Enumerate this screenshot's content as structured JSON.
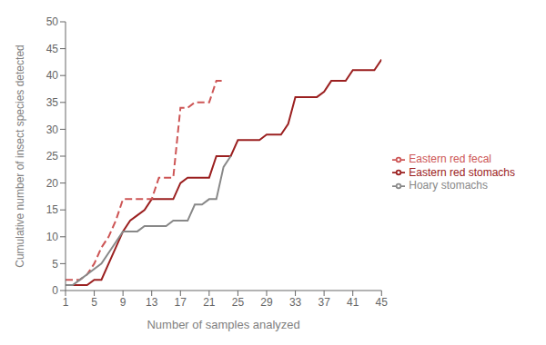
{
  "chart_data": {
    "type": "line",
    "xlabel": "Number of samples analyzed",
    "ylabel": "Cumulative number of insect species detected",
    "xlim": [
      1,
      45
    ],
    "ylim": [
      0,
      50
    ],
    "xticks": [
      1,
      5,
      9,
      13,
      17,
      21,
      25,
      29,
      33,
      37,
      41,
      45
    ],
    "yticks": [
      0,
      5,
      10,
      15,
      20,
      25,
      30,
      35,
      40,
      45,
      50
    ],
    "grid": false,
    "legend": "right",
    "series": [
      {
        "name": "Eastern red stomachs",
        "color": "#9B2020",
        "line_style": "solid",
        "x": [
          1,
          2,
          3,
          4,
          5,
          6,
          7,
          8,
          9,
          10,
          11,
          12,
          13,
          14,
          15,
          16,
          17,
          18,
          19,
          20,
          21,
          22,
          23,
          24,
          25,
          26,
          27,
          28,
          29,
          30,
          31,
          32,
          33,
          34,
          35,
          36,
          37,
          38,
          39,
          40,
          41,
          42,
          43,
          44,
          45
        ],
        "values": [
          1,
          1,
          1,
          1,
          2,
          2,
          5,
          8,
          11,
          13,
          14,
          15,
          17,
          17,
          17,
          17,
          20,
          21,
          21,
          21,
          21,
          25,
          25,
          25,
          28,
          28,
          28,
          28,
          29,
          29,
          29,
          31,
          36,
          36,
          36,
          36,
          37,
          39,
          39,
          39,
          41,
          41,
          41,
          41,
          43
        ]
      },
      {
        "name": "Eastern red fecal",
        "color": "#CD5555",
        "line_style": "dashed",
        "x": [
          1,
          2,
          3,
          4,
          5,
          6,
          7,
          8,
          9,
          10,
          11,
          12,
          13,
          14,
          15,
          16,
          17,
          18,
          19,
          20,
          21,
          22,
          23
        ],
        "values": [
          2,
          2,
          2,
          3,
          5,
          8,
          10,
          13,
          17,
          17,
          17,
          17,
          17,
          21,
          21,
          21,
          34,
          34,
          35,
          35,
          35,
          39,
          39
        ]
      },
      {
        "name": "Hoary stomachs",
        "color": "#888888",
        "line_style": "solid",
        "x": [
          1,
          2,
          3,
          4,
          5,
          6,
          7,
          8,
          9,
          10,
          11,
          12,
          13,
          14,
          15,
          16,
          17,
          18,
          19,
          20,
          21,
          22,
          23,
          24
        ],
        "values": [
          1,
          1,
          2,
          3,
          4,
          5,
          7,
          9,
          11,
          11,
          11,
          12,
          12,
          12,
          12,
          13,
          13,
          13,
          16,
          16,
          17,
          17,
          23,
          25
        ]
      }
    ]
  }
}
